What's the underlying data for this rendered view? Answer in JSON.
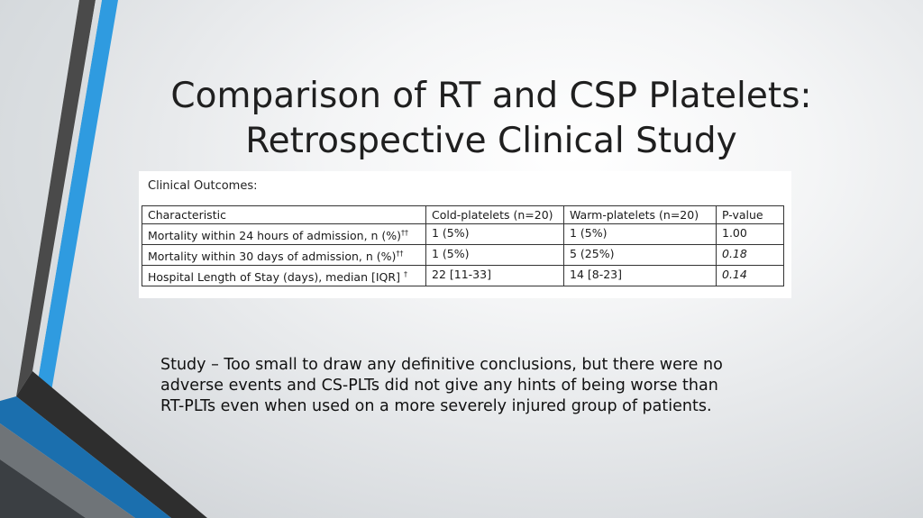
{
  "slide": {
    "title_line1": "Comparison of RT and CSP Platelets:",
    "title_line2": "Retrospective Clinical Study",
    "table_heading": "Clinical Outcomes:",
    "table": {
      "headers": [
        "Characteristic",
        "Cold-platelets (n=20)",
        "Warm-platelets (n=20)",
        "P-value"
      ],
      "rows": [
        {
          "characteristic": "Mortality within 24 hours of admission, n (%)",
          "mark": "††",
          "cold": "1 (5%)",
          "warm": "1 (5%)",
          "p": "1.00"
        },
        {
          "characteristic": "Mortality within 30 days of admission, n (%)",
          "mark": "††",
          "cold": "1 (5%)",
          "warm": "5 (25%)",
          "p": "0.18"
        },
        {
          "characteristic": "Hospital Length of Stay (days), median [IQR]",
          "mark": "†",
          "cold": "22 [11-33]",
          "warm": "14 [8-23]",
          "p": "0.14"
        }
      ]
    },
    "body_text": "Study – Too small to draw any definitive conclusions, but there were no adverse events and CS-PLTs did not give any hints of being worse than RT-PLTs even when used on a more severely injured group of patients."
  },
  "colors": {
    "accent_blue": "#2f9be0",
    "dark_blue": "#1b6fae",
    "dark_gray": "#4a4a4a",
    "charcoal": "#2e2e2e"
  }
}
